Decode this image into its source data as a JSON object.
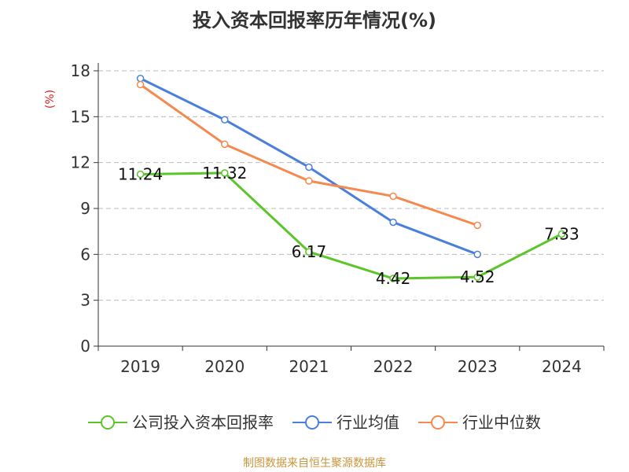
{
  "chart_data": {
    "type": "line",
    "title": "投入资本回报率历年情况(%)",
    "ylabel": "(%)",
    "categories": [
      "2019",
      "2020",
      "2021",
      "2022",
      "2023",
      "2024"
    ],
    "ylim": [
      0,
      18
    ],
    "yticks": [
      0,
      3,
      6,
      9,
      12,
      15,
      18
    ],
    "grid": true,
    "legend_position": "bottom",
    "series": [
      {
        "name": "公司投入资本回报率",
        "color": "#5cc52a",
        "values": [
          11.24,
          11.32,
          6.17,
          4.42,
          4.52,
          7.33
        ],
        "labels": [
          "11.24",
          "11.32",
          "6.17",
          "4.42",
          "4.52",
          "7.33"
        ]
      },
      {
        "name": "行业均值",
        "color": "#4a7fdb",
        "values": [
          17.5,
          14.8,
          11.7,
          8.1,
          6.0,
          null
        ]
      },
      {
        "name": "行业中位数",
        "color": "#f5894f",
        "values": [
          17.1,
          13.2,
          10.8,
          9.8,
          7.9,
          null
        ]
      }
    ]
  },
  "source": "制图数据来自恒生聚源数据库",
  "colors": {
    "axis": "#333333",
    "grid": "#bbbbbb",
    "ylabel": "#e02020",
    "source": "#c8963c"
  }
}
